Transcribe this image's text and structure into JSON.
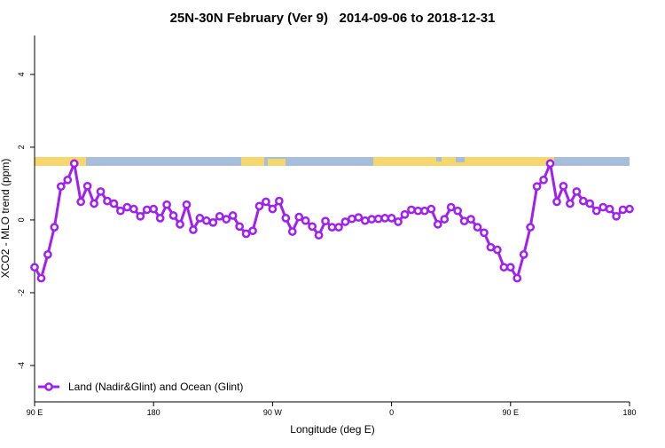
{
  "chart_data": {
    "type": "line",
    "title": "25N-30N February (Ver 9)   2014-09-06 to 2018-12-31",
    "x_label": "Longitude (deg E)",
    "y_label": "XCO2 - MLO trend (ppm)",
    "x": [
      90,
      95,
      100,
      105,
      110,
      115,
      120,
      125,
      130,
      135,
      140,
      145,
      150,
      155,
      160,
      165,
      170,
      175,
      180,
      185,
      190,
      195,
      200,
      205,
      210,
      215,
      220,
      225,
      230,
      235,
      240,
      245,
      250,
      255,
      260,
      265,
      270,
      275,
      280,
      285,
      290,
      295,
      300,
      305,
      310,
      315,
      320,
      325,
      330,
      335,
      340,
      345,
      350,
      355,
      360,
      365,
      370,
      375,
      380,
      385,
      390,
      395,
      400,
      405,
      410,
      415,
      420,
      425,
      430,
      435,
      440,
      445,
      450,
      455,
      460,
      465,
      470,
      475,
      480,
      485,
      490,
      495,
      500,
      505,
      510,
      515,
      520,
      525,
      530,
      535,
      540
    ],
    "series": [
      {
        "name": "Land (Nadir&Glint) and Ocean (Glint)",
        "color": "#a020f0",
        "values": [
          -1.3,
          -1.6,
          -0.95,
          -0.2,
          0.92,
          1.1,
          1.55,
          0.5,
          0.93,
          0.45,
          0.78,
          0.52,
          0.45,
          0.25,
          0.35,
          0.3,
          0.1,
          0.28,
          0.3,
          0.05,
          0.42,
          0.12,
          -0.12,
          0.42,
          -0.27,
          0.05,
          -0.02,
          -0.07,
          0.1,
          0.02,
          0.12,
          -0.18,
          -0.38,
          -0.3,
          0.38,
          0.5,
          0.3,
          0.52,
          0.05,
          -0.32,
          0.08,
          -0.02,
          -0.18,
          -0.42,
          -0.03,
          -0.2,
          -0.2,
          -0.05,
          0.03,
          0.07,
          -0.02,
          0.02,
          0.03,
          0.05,
          0.05,
          -0.05,
          0.15,
          0.28,
          0.25,
          0.25,
          0.3,
          -0.12,
          0.02,
          0.35,
          0.25,
          -0.03,
          0.02,
          -0.2,
          -0.35,
          -0.75,
          -0.82,
          -1.3,
          -1.3,
          -1.6,
          -0.95,
          -0.2,
          0.92,
          1.1,
          1.55,
          0.5,
          0.93,
          0.45,
          0.78,
          0.52,
          0.45,
          0.25,
          0.35,
          0.3,
          0.1,
          0.28,
          0.3
        ]
      }
    ],
    "xlim": [
      90,
      540
    ],
    "xticks": [
      {
        "value": 90,
        "label": "90 E"
      },
      {
        "value": 180,
        "label": "180"
      },
      {
        "value": 270,
        "label": "90 W"
      },
      {
        "value": 360,
        "label": "0"
      },
      {
        "value": 450,
        "label": "90 E"
      },
      {
        "value": 540,
        "label": "180"
      }
    ],
    "ylim": [
      -5,
      5.07
    ],
    "yticks": [
      -4,
      -2,
      0,
      2,
      4
    ],
    "legend": "bottomleft"
  }
}
